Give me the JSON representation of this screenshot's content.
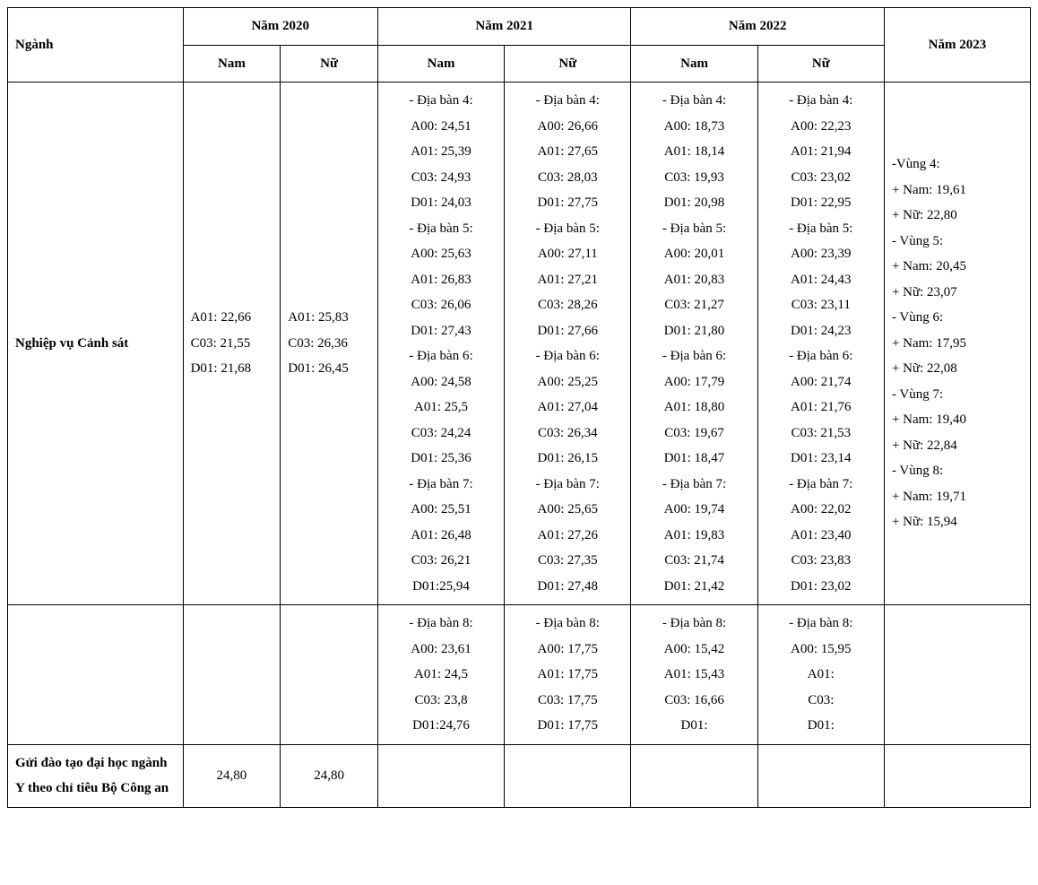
{
  "header": {
    "nganh": "Ngành",
    "year2020": "Năm 2020",
    "year2021": "Năm 2021",
    "year2022": "Năm 2022",
    "year2023": "Năm 2023",
    "nam": "Nam",
    "nu": "Nữ"
  },
  "row1": {
    "nganh": "Nghiệp vụ Cảnh sát",
    "y2020_nam": "A01: 22,66\nC03: 21,55\nD01: 21,68",
    "y2020_nu": "A01: 25,83\nC03: 26,36\nD01: 26,45",
    "y2021_nam": "- Địa bàn 4:\nA00: 24,51\nA01: 25,39\nC03: 24,93\nD01: 24,03\n- Địa bàn 5:\nA00: 25,63\nA01: 26,83\nC03: 26,06\nD01: 27,43\n- Địa bàn 6:\nA00: 24,58\nA01: 25,5\nC03: 24,24\nD01: 25,36\n- Địa bàn 7:\nA00: 25,51\nA01: 26,48\nC03: 26,21\nD01:25,94",
    "y2021_nu": "- Địa bàn 4:\nA00: 26,66\nA01: 27,65\nC03: 28,03\nD01: 27,75\n- Địa bàn 5:\nA00: 27,11\nA01: 27,21\nC03: 28,26\nD01: 27,66\n- Địa bàn 6:\nA00: 25,25\nA01: 27,04\nC03: 26,34\nD01: 26,15\n- Địa bàn 7:\nA00: 25,65\nA01: 27,26\nC03: 27,35\nD01: 27,48",
    "y2022_nam": "- Địa bàn 4:\nA00: 18,73\nA01: 18,14\nC03: 19,93\nD01: 20,98\n- Địa bàn 5:\nA00: 20,01\nA01: 20,83\nC03: 21,27\nD01: 21,80\n- Địa bàn 6:\nA00: 17,79\nA01: 18,80\nC03: 19,67\nD01: 18,47\n- Địa bàn 7:\nA00: 19,74\nA01: 19,83\nC03: 21,74\nD01: 21,42",
    "y2022_nu": "- Địa bàn 4:\nA00: 22,23\nA01: 21,94\nC03: 23,02\nD01: 22,95\n- Địa bàn 5:\nA00: 23,39\nA01: 24,43\nC03: 23,11\nD01: 24,23\n- Địa bàn 6:\nA00: 21,74\nA01: 21,76\nC03: 21,53\nD01: 23,14\n- Địa bàn 7:\nA00: 22,02\nA01: 23,40\nC03: 23,83\nD01: 23,02",
    "y2023": "-Vùng 4:\n+ Nam: 19,61\n+ Nữ: 22,80\n- Vùng 5:\n+ Nam: 20,45\n+ Nữ: 23,07\n- Vùng 6:\n+ Nam: 17,95\n+ Nữ: 22,08\n- Vùng 7:\n+ Nam: 19,40\n+ Nữ: 22,84\n- Vùng 8:\n+ Nam: 19,71\n+ Nữ: 15,94"
  },
  "row2": {
    "nganh": "",
    "y2020_nam": "",
    "y2020_nu": "",
    "y2021_nam": "- Địa bàn 8:\nA00: 23,61\nA01: 24,5\nC03: 23,8\nD01:24,76",
    "y2021_nu": "- Địa bàn 8:\nA00: 17,75\nA01: 17,75\nC03: 17,75\nD01: 17,75",
    "y2022_nam": "- Địa bàn 8:\nA00: 15,42\nA01: 15,43\nC03: 16,66\nD01:",
    "y2022_nu": "- Địa bàn 8:\nA00: 15,95\nA01:\nC03:\nD01:",
    "y2023": ""
  },
  "row3": {
    "nganh": "Gửi đào tạo đại học ngành Y theo chỉ tiêu Bộ Công an",
    "y2020_nam": "24,80",
    "y2020_nu": "24,80",
    "y2021_nam": "",
    "y2021_nu": "",
    "y2022_nam": "",
    "y2022_nu": "",
    "y2023": ""
  }
}
